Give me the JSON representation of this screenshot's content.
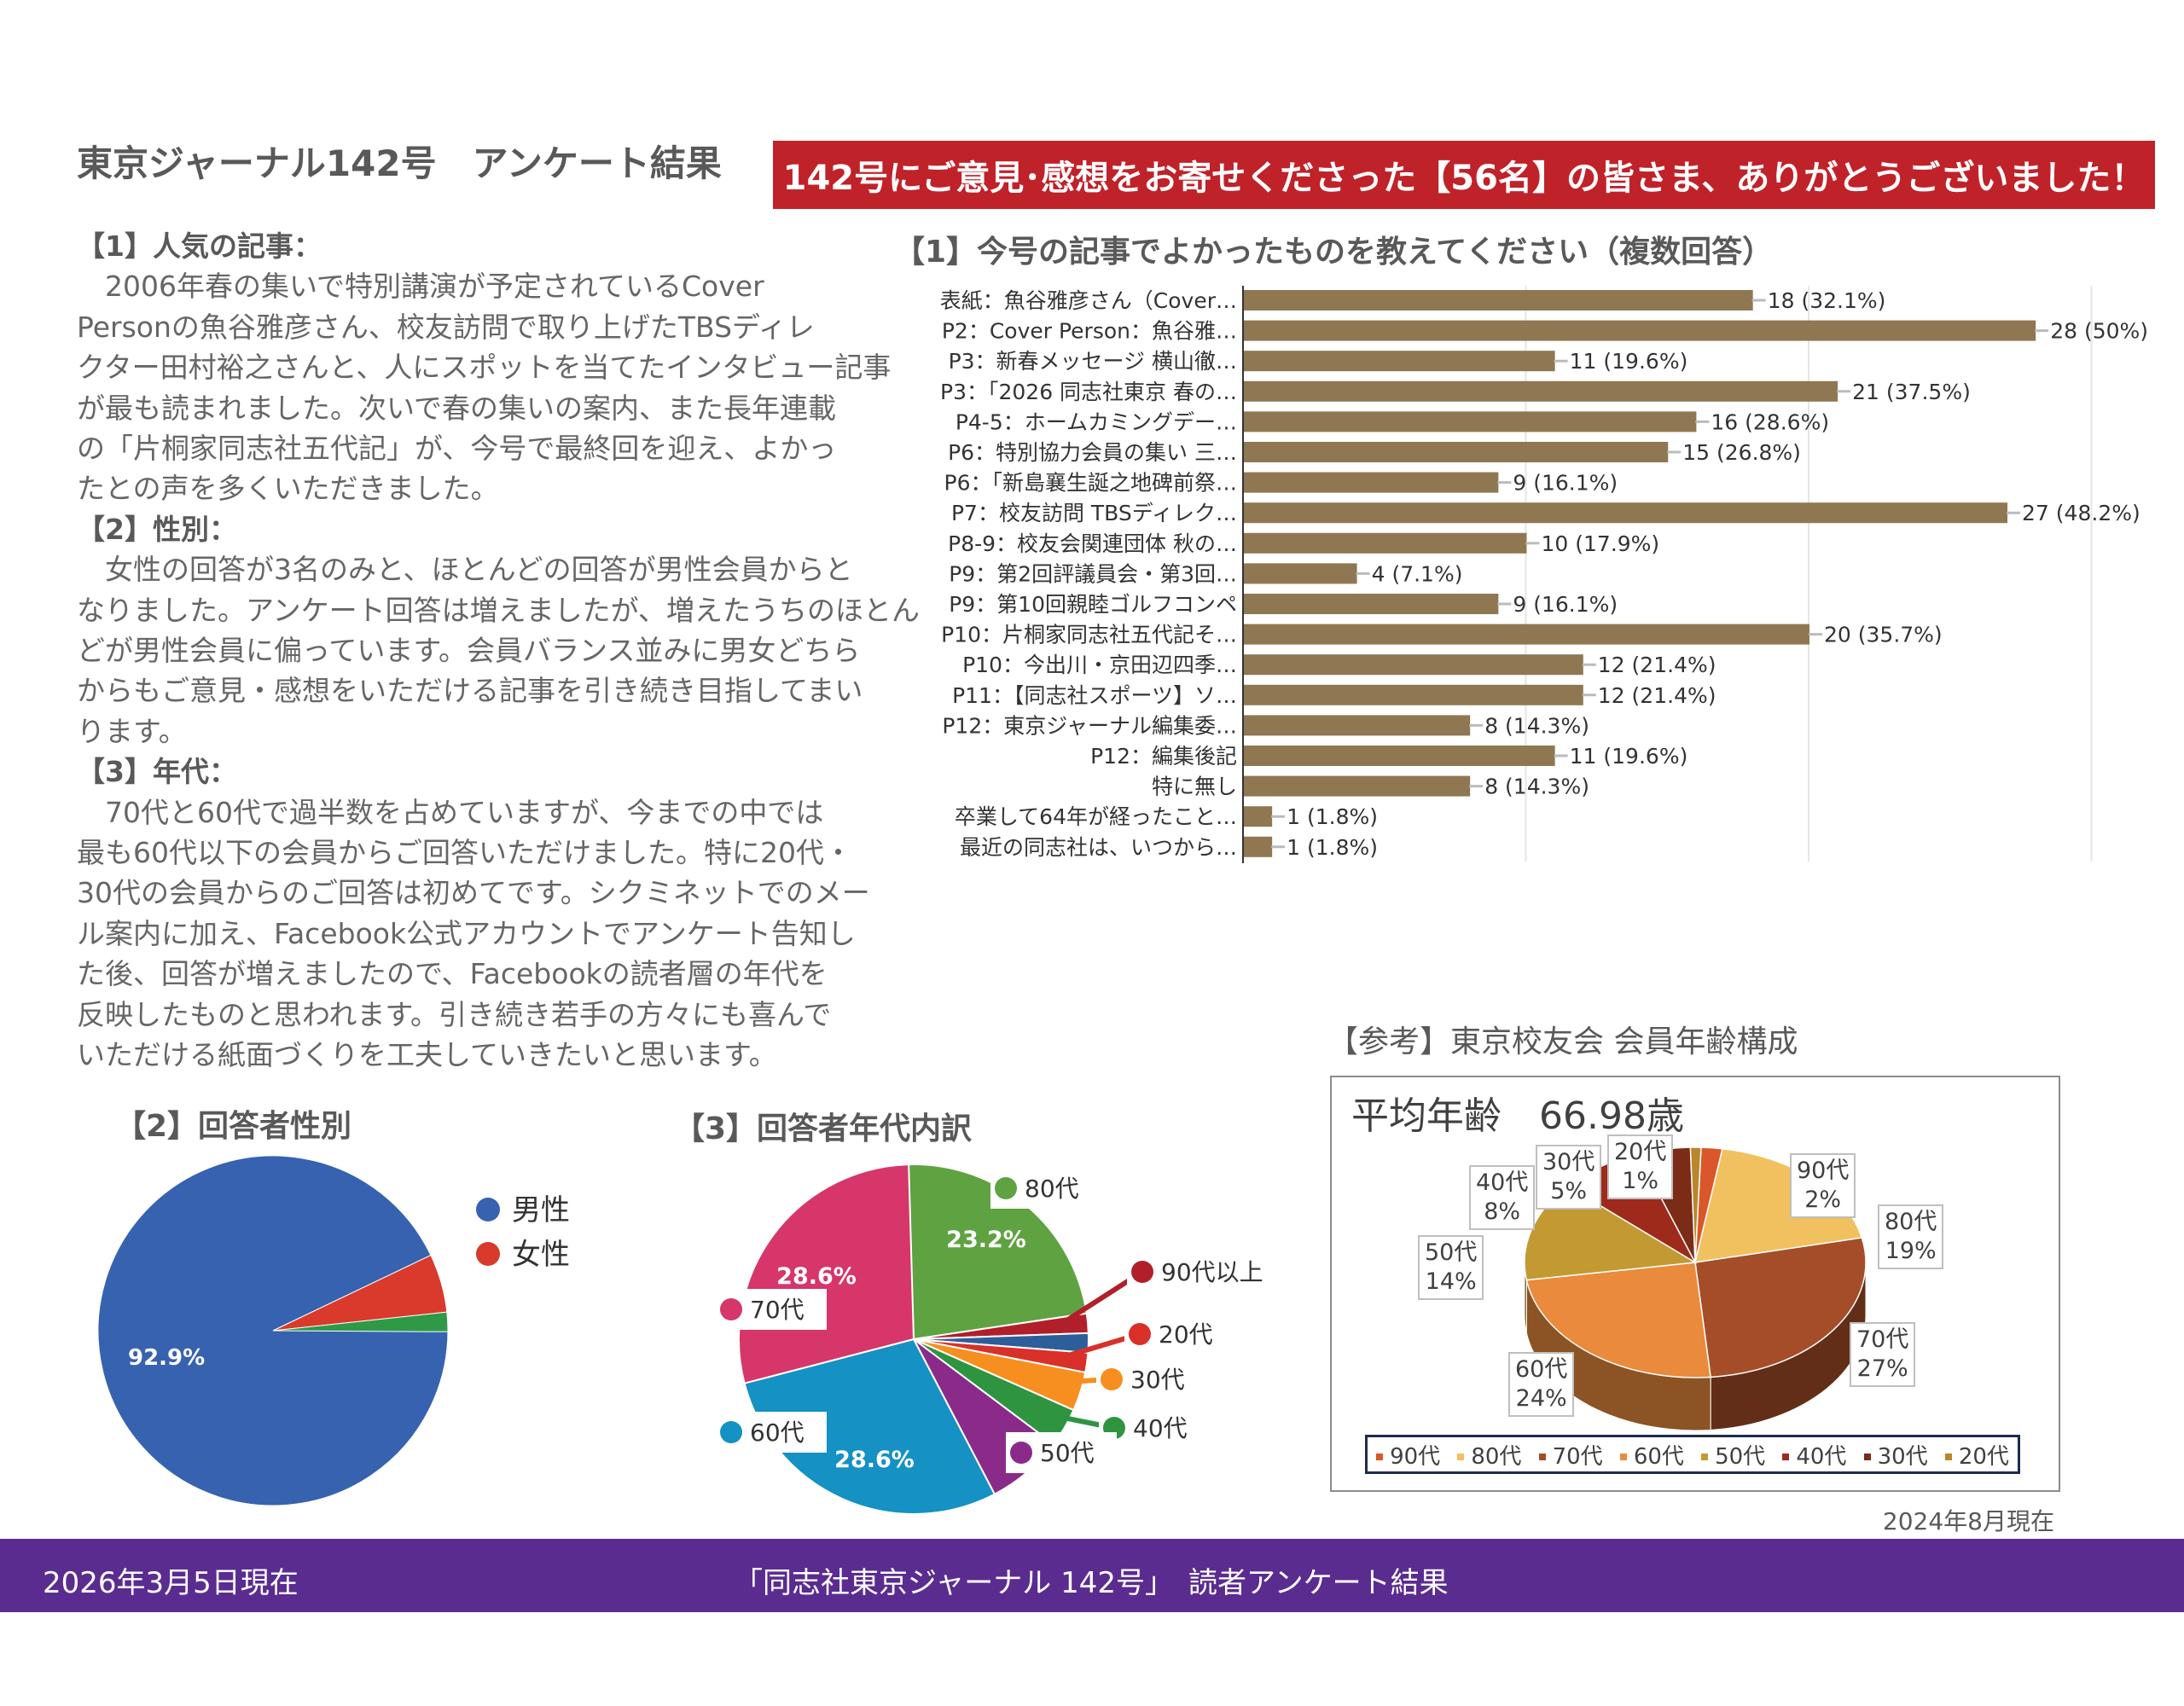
{
  "title": "東京ジャーナル142号　アンケート結果",
  "banner": "142号にご意見･感想をお寄せくださった【56名】の皆さま、ありがとうございました！",
  "text_lines": [
    {
      "t": "【1】人気の記事：",
      "h": true
    },
    {
      "t": "　2006年春の集いで特別講演が予定されているCover"
    },
    {
      "t": "Personの魚谷雅彦さん、校友訪問で取り上げたTBSディレ"
    },
    {
      "t": "クター田村裕之さんと、人にスポットを当てたインタビュー記事"
    },
    {
      "t": "が最も読まれました。次いで春の集いの案内、また長年連載"
    },
    {
      "t": "の「片桐家同志社五代記」が、今号で最終回を迎え、よかっ"
    },
    {
      "t": "たとの声を多くいただきました。"
    },
    {
      "t": "【2】性別：",
      "h": true
    },
    {
      "t": "　女性の回答が3名のみと、ほとんどの回答が男性会員からと"
    },
    {
      "t": "なりました。アンケート回答は増えましたが、増えたうちのほとん"
    },
    {
      "t": "どが男性会員に偏っています。会員バランス並みに男女どちら"
    },
    {
      "t": "からもご意見・感想をいただける記事を引き続き目指してまい"
    },
    {
      "t": "ります。"
    },
    {
      "t": "【3】年代：",
      "h": true
    },
    {
      "t": "　70代と60代で過半数を占めていますが、今までの中では"
    },
    {
      "t": "最も60代以下の会員からご回答いただけました。特に20代・"
    },
    {
      "t": "30代の会員からのご回答は初めてです。シクミネットでのメー"
    },
    {
      "t": "ル案内に加え、Facebook公式アカウントでアンケート告知し"
    },
    {
      "t": "た後、回答が増えましたので、Facebookの読者層の年代を"
    },
    {
      "t": "反映したものと思われます。引き続き若手の方々にも喜んで"
    },
    {
      "t": "いただける紙面づくりを工夫していきたいと思います。"
    }
  ],
  "chart_data": [
    {
      "type": "bar",
      "title": "【1】今号の記事でよかったものを教えてください（複数回答）",
      "orientation": "horizontal",
      "color": "#8f7752",
      "xlim": [
        0,
        30
      ],
      "categories": [
        "表紙：魚谷雅彦さん（Cover…",
        "P2：Cover Person：魚谷雅…",
        "P3：新春メッセージ 横山徹…",
        "P3：「2026 同志社東京 春の…",
        "P4-5：ホームカミングデー…",
        "P6：特別協力会員の集い 三…",
        "P6：「新島襄生誕之地碑前祭…",
        "P7：校友訪問 TBSディレク…",
        "P8-9：校友会関連団体 秋の…",
        "P9：第2回評議員会・第3回…",
        "P9：第10回親睦ゴルフコンペ",
        "P10：片桐家同志社五代記そ…",
        "P10：今出川・京田辺四季…",
        "P11：【同志社スポーツ】ソ…",
        "P12：東京ジャーナル編集委…",
        "P12：編集後記",
        "特に無し",
        "卒業して64年が経ったこと…",
        "最近の同志社は、いつから…"
      ],
      "values": [
        18,
        28,
        11,
        21,
        16,
        15,
        9,
        27,
        10,
        4,
        9,
        20,
        12,
        12,
        8,
        11,
        8,
        1,
        1
      ],
      "labels": [
        "18 (32.1%)",
        "28 (50%)",
        "11 (19.6%)",
        "21 (37.5%)",
        "16 (28.6%)",
        "15 (26.8%)",
        "9 (16.1%)",
        "27 (48.2%)",
        "10 (17.9%)",
        "4 (7.1%)",
        "9 (16.1%)",
        "20 (35.7%)",
        "12 (21.4%)",
        "12 (21.4%)",
        "8 (14.3%)",
        "11 (19.6%)",
        "8 (14.3%)",
        "1 (1.8%)",
        "1 (1.8%)"
      ]
    },
    {
      "type": "pie",
      "title": "【2】回答者性別",
      "slices": [
        {
          "name": "男性",
          "value": 92.9,
          "color": "#3762b0",
          "label": "92.9%"
        },
        {
          "name": "女性",
          "value": 5.4,
          "color": "#d93a2b"
        },
        {
          "name": "",
          "value": 1.8,
          "color": "#2e9a48"
        }
      ],
      "legend": [
        "男性",
        "女性"
      ]
    },
    {
      "type": "pie",
      "title": "【3】回答者年代内訳",
      "slices": [
        {
          "name": "80代",
          "value": 23.2,
          "color": "#5fa242",
          "label": "23.2%"
        },
        {
          "name": "90代以上",
          "value": 1.8,
          "color": "#b11f2b"
        },
        {
          "name": "",
          "value": 1.8,
          "color": "#2d5e9a"
        },
        {
          "name": "20代",
          "value": 1.8,
          "color": "#d9302a"
        },
        {
          "name": "30代",
          "value": 3.6,
          "color": "#f68f1f"
        },
        {
          "name": "40代",
          "value": 3.6,
          "color": "#2e9440"
        },
        {
          "name": "50代",
          "value": 7.1,
          "color": "#8a2b8a"
        },
        {
          "name": "60代",
          "value": 28.6,
          "color": "#1591c3",
          "label": "28.6%"
        },
        {
          "name": "70代",
          "value": 28.6,
          "color": "#d6366a",
          "label": "28.6%"
        }
      ]
    },
    {
      "type": "pie",
      "title": "【参考】東京校友会 会員年齢構成",
      "subtitle": "平均年齢　66.98歳",
      "note": "2024年8月現在",
      "slices": [
        {
          "name": "90代",
          "value": 2,
          "color": "#d9572a",
          "label": "2%"
        },
        {
          "name": "80代",
          "value": 19,
          "color": "#f0c15e",
          "label": "19%"
        },
        {
          "name": "70代",
          "value": 27,
          "color": "#a54d28",
          "label": "27%"
        },
        {
          "name": "60代",
          "value": 24,
          "color": "#ea8a3c",
          "label": "24%"
        },
        {
          "name": "50代",
          "value": 14,
          "color": "#c39a32",
          "label": "14%"
        },
        {
          "name": "40代",
          "value": 8,
          "color": "#9e2a1c",
          "label": "8%"
        },
        {
          "name": "30代",
          "value": 5,
          "color": "#7b2b16",
          "label": "5%"
        },
        {
          "name": "20代",
          "value": 1,
          "color": "#b8862c",
          "label": "1%"
        }
      ]
    }
  ],
  "footer": {
    "date": "2026年3月5日現在",
    "center": "「同志社東京ジャーナル 142号」　読者アンケート結果"
  }
}
